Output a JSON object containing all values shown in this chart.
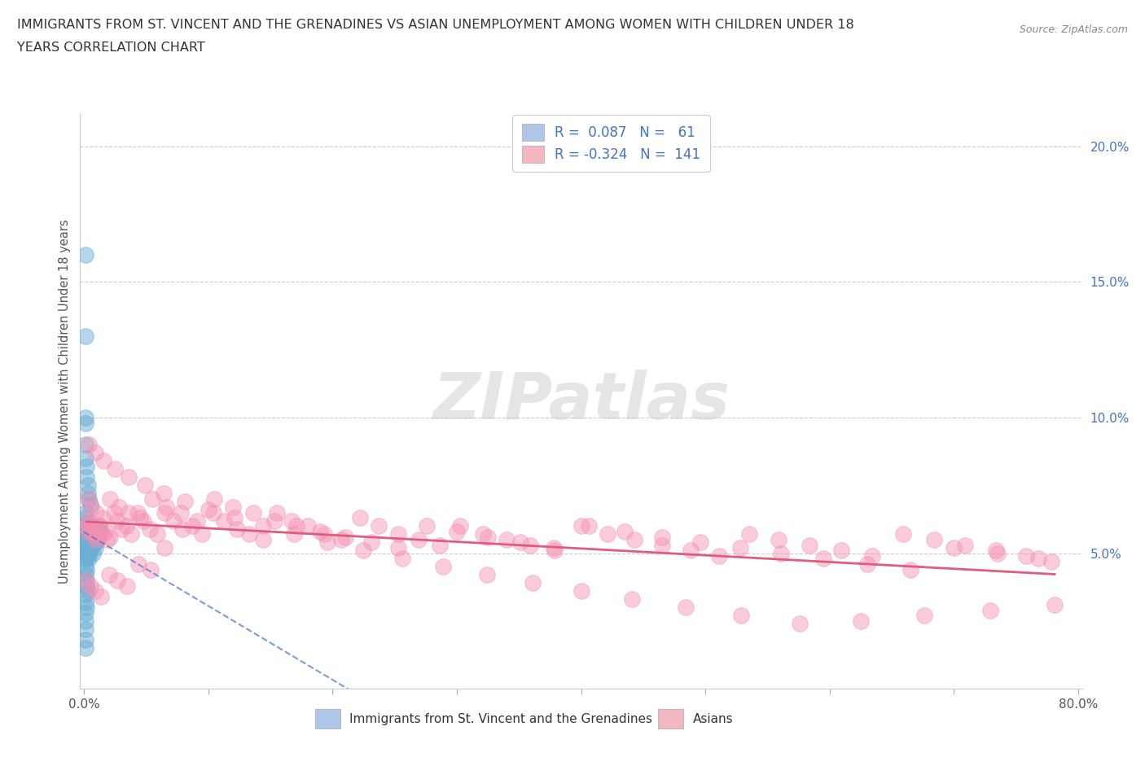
{
  "title_line1": "IMMIGRANTS FROM ST. VINCENT AND THE GRENADINES VS ASIAN UNEMPLOYMENT AMONG WOMEN WITH CHILDREN UNDER 18",
  "title_line2": "YEARS CORRELATION CHART",
  "source_text": "Source: ZipAtlas.com",
  "ylabel": "Unemployment Among Women with Children Under 18 years",
  "watermark": "ZIPatlas",
  "xlim": [
    -0.003,
    0.803
  ],
  "ylim": [
    0.0,
    0.212
  ],
  "xtick_vals": [
    0.0,
    0.1,
    0.2,
    0.3,
    0.4,
    0.5,
    0.6,
    0.7,
    0.8
  ],
  "xtick_labels": [
    "0.0%",
    "",
    "",
    "",
    "",
    "",
    "",
    "",
    "80.0%"
  ],
  "ytick_right_vals": [
    0.05,
    0.1,
    0.15,
    0.2
  ],
  "ytick_right_labels": [
    "5.0%",
    "10.0%",
    "15.0%",
    "20.0%"
  ],
  "legend_color1": "#aec6e8",
  "legend_color2": "#f4b8c1",
  "dot_color_blue": "#6baed6",
  "dot_color_pink": "#f48fb1",
  "trend_color_blue": "#4472c4",
  "trend_color_pink": "#e05c7a",
  "trend_blue_dashed": true,
  "bottom_legend_blue": "Immigrants from St. Vincent and the Grenadines",
  "bottom_legend_pink": "Asians",
  "blue_x": [
    0.001,
    0.001,
    0.001,
    0.001,
    0.001,
    0.002,
    0.002,
    0.002,
    0.002,
    0.002,
    0.003,
    0.003,
    0.003,
    0.003,
    0.004,
    0.004,
    0.004,
    0.005,
    0.005,
    0.005,
    0.006,
    0.006,
    0.007,
    0.007,
    0.008,
    0.008,
    0.009,
    0.01,
    0.01,
    0.011,
    0.012,
    0.013,
    0.001,
    0.001,
    0.001,
    0.002,
    0.002,
    0.003,
    0.003,
    0.004,
    0.005,
    0.001,
    0.001,
    0.002,
    0.002,
    0.003,
    0.001,
    0.001,
    0.002,
    0.001,
    0.001,
    0.002,
    0.001,
    0.001,
    0.001,
    0.001,
    0.001,
    0.002,
    0.002,
    0.001,
    0.001
  ],
  "blue_y": [
    0.16,
    0.055,
    0.052,
    0.05,
    0.048,
    0.06,
    0.057,
    0.055,
    0.052,
    0.05,
    0.058,
    0.055,
    0.053,
    0.05,
    0.052,
    0.05,
    0.048,
    0.06,
    0.057,
    0.054,
    0.055,
    0.052,
    0.053,
    0.05,
    0.058,
    0.055,
    0.052,
    0.057,
    0.054,
    0.055,
    0.06,
    0.058,
    0.13,
    0.1,
    0.09,
    0.082,
    0.078,
    0.075,
    0.072,
    0.07,
    0.068,
    0.045,
    0.042,
    0.04,
    0.038,
    0.036,
    0.065,
    0.063,
    0.061,
    0.035,
    0.032,
    0.03,
    0.028,
    0.025,
    0.022,
    0.018,
    0.015,
    0.048,
    0.044,
    0.098,
    0.085
  ],
  "pink_x": [
    0.002,
    0.003,
    0.004,
    0.005,
    0.006,
    0.007,
    0.008,
    0.009,
    0.01,
    0.011,
    0.013,
    0.015,
    0.017,
    0.019,
    0.021,
    0.024,
    0.027,
    0.03,
    0.034,
    0.038,
    0.043,
    0.048,
    0.053,
    0.059,
    0.065,
    0.072,
    0.079,
    0.087,
    0.095,
    0.104,
    0.113,
    0.123,
    0.133,
    0.144,
    0.155,
    0.167,
    0.18,
    0.193,
    0.207,
    0.222,
    0.237,
    0.253,
    0.269,
    0.286,
    0.303,
    0.321,
    0.34,
    0.359,
    0.379,
    0.4,
    0.421,
    0.443,
    0.465,
    0.488,
    0.511,
    0.535,
    0.559,
    0.584,
    0.609,
    0.634,
    0.659,
    0.684,
    0.709,
    0.734,
    0.758,
    0.778,
    0.003,
    0.006,
    0.01,
    0.015,
    0.021,
    0.028,
    0.036,
    0.045,
    0.055,
    0.066,
    0.078,
    0.091,
    0.105,
    0.12,
    0.136,
    0.153,
    0.171,
    0.19,
    0.21,
    0.231,
    0.253,
    0.276,
    0.3,
    0.325,
    0.351,
    0.378,
    0.406,
    0.435,
    0.465,
    0.496,
    0.528,
    0.561,
    0.595,
    0.63,
    0.665,
    0.7,
    0.735,
    0.768,
    0.004,
    0.009,
    0.016,
    0.025,
    0.036,
    0.049,
    0.064,
    0.081,
    0.1,
    0.121,
    0.144,
    0.169,
    0.196,
    0.225,
    0.256,
    0.289,
    0.324,
    0.361,
    0.4,
    0.441,
    0.484,
    0.529,
    0.576,
    0.625,
    0.676,
    0.729,
    0.781,
    0.002,
    0.005,
    0.009,
    0.014,
    0.02,
    0.027,
    0.035,
    0.044,
    0.054,
    0.065
  ],
  "pink_y": [
    0.06,
    0.058,
    0.062,
    0.059,
    0.06,
    0.057,
    0.058,
    0.055,
    0.058,
    0.056,
    0.06,
    0.057,
    0.058,
    0.055,
    0.056,
    0.065,
    0.062,
    0.059,
    0.06,
    0.057,
    0.065,
    0.062,
    0.059,
    0.057,
    0.065,
    0.062,
    0.059,
    0.06,
    0.057,
    0.065,
    0.062,
    0.059,
    0.057,
    0.055,
    0.065,
    0.062,
    0.06,
    0.057,
    0.055,
    0.063,
    0.06,
    0.057,
    0.055,
    0.053,
    0.06,
    0.057,
    0.055,
    0.053,
    0.051,
    0.06,
    0.057,
    0.055,
    0.053,
    0.051,
    0.049,
    0.057,
    0.055,
    0.053,
    0.051,
    0.049,
    0.057,
    0.055,
    0.053,
    0.051,
    0.049,
    0.047,
    0.07,
    0.067,
    0.065,
    0.063,
    0.07,
    0.067,
    0.065,
    0.063,
    0.07,
    0.067,
    0.065,
    0.062,
    0.07,
    0.067,
    0.065,
    0.062,
    0.06,
    0.058,
    0.056,
    0.054,
    0.052,
    0.06,
    0.058,
    0.056,
    0.054,
    0.052,
    0.06,
    0.058,
    0.056,
    0.054,
    0.052,
    0.05,
    0.048,
    0.046,
    0.044,
    0.052,
    0.05,
    0.048,
    0.09,
    0.087,
    0.084,
    0.081,
    0.078,
    0.075,
    0.072,
    0.069,
    0.066,
    0.063,
    0.06,
    0.057,
    0.054,
    0.051,
    0.048,
    0.045,
    0.042,
    0.039,
    0.036,
    0.033,
    0.03,
    0.027,
    0.024,
    0.025,
    0.027,
    0.029,
    0.031,
    0.04,
    0.038,
    0.036,
    0.034,
    0.042,
    0.04,
    0.038,
    0.046,
    0.044,
    0.052
  ]
}
